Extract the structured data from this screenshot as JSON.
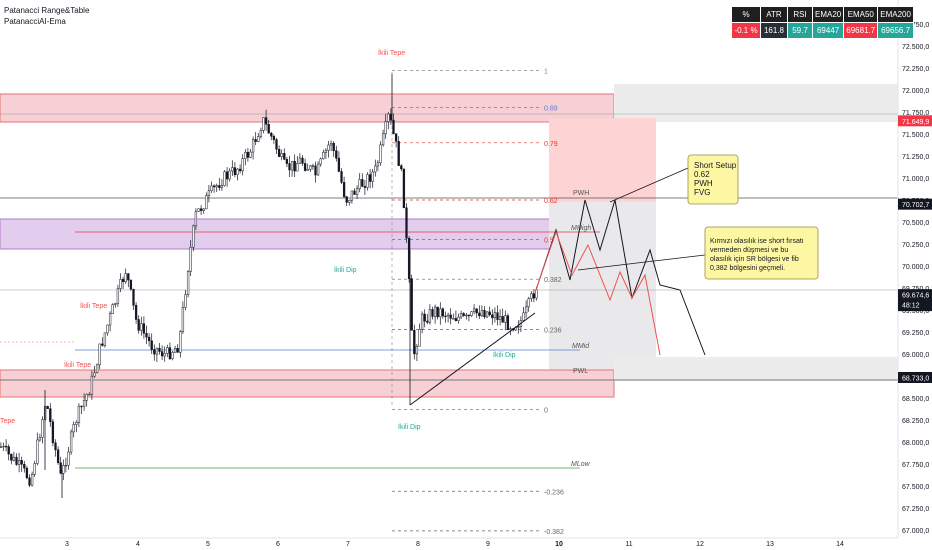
{
  "indicators": [
    "Patanacci Range&Table",
    "PatanacciAI-Ema"
  ],
  "table": {
    "headers": [
      "%",
      "ATR",
      "RSI",
      "EMA20",
      "EMA50",
      "EMA200"
    ],
    "values": [
      "-0.1 %",
      "161.8",
      "59.7",
      "69447",
      "69681.7",
      "69656.7"
    ],
    "colors": [
      "#f23645",
      "#2a2e39",
      "#26a69a",
      "#26a69a",
      "#f23645",
      "#26a69a"
    ]
  },
  "chart_data": {
    "type": "candlestick",
    "ylim": [
      67000,
      72900
    ],
    "price_ticks": [
      "67.000,0",
      "67.250,0",
      "67.500,0",
      "67.750,0",
      "68.000,0",
      "68.250,0",
      "68.500,0",
      "68.750,0",
      "69.000,0",
      "69.250,0",
      "69.500,0",
      "69.750,0",
      "70.000,0",
      "70.250,0",
      "70.500,0",
      "70.750,0",
      "71.000,0",
      "71.250,0",
      "71.500,0",
      "71.750,0",
      "72.000,0",
      "72.250,0",
      "72.500,0",
      "72.750,0"
    ],
    "date_ticks": [
      "3",
      "4",
      "5",
      "6",
      "7",
      "8",
      "9",
      "10",
      "11",
      "12",
      "13",
      "14"
    ],
    "price_badges": [
      {
        "label": "71.649,9",
        "price": 71649.9,
        "color": "#f23645"
      },
      {
        "label": "70.702,7",
        "price": 70702.7,
        "color": "#131722"
      },
      {
        "label": "69.674,6",
        "sub": "48:12",
        "price": 69674.6,
        "color": "#131722"
      },
      {
        "label": "68.733,0",
        "price": 68733.0,
        "color": "#131722"
      }
    ],
    "fib_levels": [
      {
        "label": "1",
        "price": 72220
      },
      {
        "label": "0.89",
        "price": 71800
      },
      {
        "label": "0.79",
        "price": 71400
      },
      {
        "label": "0.62",
        "price": 70750
      },
      {
        "label": "0.5",
        "price": 70300
      },
      {
        "label": "0.382",
        "price": 69850
      },
      {
        "label": "0.236",
        "price": 69280
      },
      {
        "label": "0",
        "price": 68370
      },
      {
        "label": "-0.236",
        "price": 67440
      },
      {
        "label": "-0.382",
        "price": 66990
      }
    ],
    "level_labels": [
      "PWH",
      "MHigh",
      "MMid",
      "PWL",
      "MLow"
    ],
    "pattern_labels": [
      "İkili Tepe",
      "İkili Dip",
      "İkili Tepe",
      "İkili Tepe",
      "İkili Dip",
      "İkili Dip",
      "Tepe"
    ],
    "notes": [
      {
        "id": "short",
        "lines": [
          "Short Setup",
          "0.62",
          "PWH",
          "FVG"
        ]
      },
      {
        "id": "alt",
        "lines": [
          "Kırmızı olasılık ise short fırsatı",
          "vermeden düşmesi ve bu",
          "olasılık için SR bölgesi ve fib",
          "0,382 bölgesini geçmeli."
        ]
      }
    ]
  }
}
